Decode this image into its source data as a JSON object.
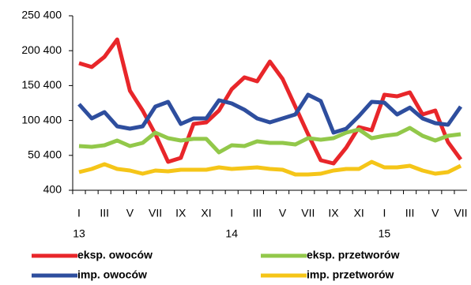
{
  "chart_data": {
    "type": "line",
    "categories": [
      "I",
      null,
      "III",
      null,
      "V",
      null,
      "VII",
      null,
      "IX",
      null,
      "XI",
      null,
      "I",
      null,
      "III",
      null,
      "V",
      null,
      "VII",
      null,
      "IX",
      null,
      "XI",
      null,
      "I",
      null,
      "III",
      null,
      "V",
      null,
      "VII"
    ],
    "years": [
      "13",
      "14",
      "15"
    ],
    "ylim": [
      400,
      250400
    ],
    "yticks": [
      {
        "value": 400,
        "label": "400"
      },
      {
        "value": 50400,
        "label": "50 400"
      },
      {
        "value": 100400,
        "label": "100 400"
      },
      {
        "value": 150400,
        "label": "150 400"
      },
      {
        "value": 200400,
        "label": "200 400"
      },
      {
        "value": 250400,
        "label": "250 400"
      }
    ],
    "grid": false,
    "series": [
      {
        "name": "eksp. owoców",
        "color": "#e8262a",
        "values": [
          182500,
          177000,
          191600,
          216500,
          143000,
          114700,
          80700,
          41100,
          46800,
          95400,
          97700,
          114700,
          145200,
          162200,
          156500,
          184800,
          159900,
          120300,
          80700,
          43400,
          38900,
          61500,
          90900,
          86400,
          137300,
          135000,
          140700,
          109000,
          114700,
          69400,
          44500
        ]
      },
      {
        "name": "eksp. przetworów",
        "color": "#92c84a",
        "values": [
          63700,
          62600,
          64900,
          71700,
          63700,
          68300,
          83000,
          75100,
          71700,
          74000,
          74000,
          54700,
          64900,
          63700,
          70500,
          68300,
          68300,
          66000,
          75100,
          72800,
          75100,
          83000,
          87500,
          75100,
          78500,
          80700,
          89800,
          78500,
          71700,
          78500,
          80700
        ]
      },
      {
        "name": "imp. owoców",
        "color": "#2e4e9e",
        "values": [
          123700,
          103300,
          112400,
          92000,
          88600,
          92000,
          120300,
          127100,
          95400,
          103300,
          103300,
          129400,
          124800,
          115800,
          103300,
          97700,
          103300,
          109000,
          137300,
          128200,
          83000,
          88600,
          106700,
          127100,
          126000,
          109000,
          118800,
          103300,
          96600,
          94300,
          120300
        ]
      },
      {
        "name": "imp. przetworów",
        "color": "#f5c518",
        "values": [
          26400,
          30900,
          37700,
          30900,
          28700,
          24200,
          28700,
          27500,
          29800,
          29800,
          29800,
          33200,
          30900,
          32100,
          33200,
          30900,
          29800,
          23000,
          23000,
          24200,
          28700,
          30900,
          30900,
          41100,
          33200,
          33200,
          35500,
          28700,
          24200,
          26400,
          35500
        ]
      }
    ]
  }
}
